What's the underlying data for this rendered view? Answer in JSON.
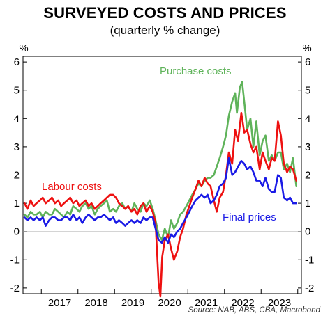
{
  "title": "SURVEYED COSTS AND PRICES",
  "subtitle": "(quarterly % change)",
  "unit_left": "%",
  "unit_right": "%",
  "source": "Source: NAB, ABS, CBA, Macrobond",
  "colors": {
    "labour": "#ee1111",
    "purchase": "#5fb35a",
    "final": "#1a1ae6",
    "axis": "#000000"
  },
  "chart_data": {
    "type": "line",
    "title": "SURVEYED COSTS AND PRICES",
    "subtitle": "(quarterly % change)",
    "ylabel": "%",
    "ylim": [
      -2.2,
      6.2
    ],
    "yticks": [
      -2,
      -1,
      0,
      1,
      2,
      3,
      4,
      5,
      6
    ],
    "xlim": [
      2016.5,
      2024.1
    ],
    "xticks": [
      2017,
      2018,
      2019,
      2020,
      2021,
      2022,
      2023
    ],
    "x_tick_labels": [
      "2017",
      "2018",
      "2019",
      "2020",
      "2021",
      "2022",
      "2023"
    ],
    "grid": false,
    "series": [
      {
        "name": "Labour costs",
        "color": "#ee1111",
        "points": [
          [
            2016.54,
            1.0
          ],
          [
            2016.62,
            0.8
          ],
          [
            2016.71,
            1.1
          ],
          [
            2016.79,
            0.9
          ],
          [
            2016.87,
            1.0
          ],
          [
            2016.96,
            1.1
          ],
          [
            2017.04,
            1.2
          ],
          [
            2017.12,
            1.0
          ],
          [
            2017.21,
            1.1
          ],
          [
            2017.29,
            1.2
          ],
          [
            2017.37,
            1.0
          ],
          [
            2017.46,
            1.1
          ],
          [
            2017.54,
            0.9
          ],
          [
            2017.62,
            1.0
          ],
          [
            2017.71,
            1.1
          ],
          [
            2017.79,
            1.2
          ],
          [
            2017.87,
            1.0
          ],
          [
            2017.96,
            1.1
          ],
          [
            2018.04,
            0.9
          ],
          [
            2018.12,
            1.0
          ],
          [
            2018.21,
            1.1
          ],
          [
            2018.29,
            0.9
          ],
          [
            2018.37,
            1.0
          ],
          [
            2018.46,
            0.8
          ],
          [
            2018.54,
            0.9
          ],
          [
            2018.62,
            1.0
          ],
          [
            2018.71,
            1.1
          ],
          [
            2018.79,
            1.2
          ],
          [
            2018.87,
            1.3
          ],
          [
            2018.96,
            1.3
          ],
          [
            2019.04,
            1.2
          ],
          [
            2019.12,
            1.0
          ],
          [
            2019.21,
            0.9
          ],
          [
            2019.29,
            0.8
          ],
          [
            2019.37,
            0.9
          ],
          [
            2019.46,
            0.7
          ],
          [
            2019.54,
            0.8
          ],
          [
            2019.62,
            0.6
          ],
          [
            2019.71,
            0.9
          ],
          [
            2019.79,
            1.0
          ],
          [
            2019.87,
            0.7
          ],
          [
            2019.96,
            0.9
          ],
          [
            2020.04,
            0.7
          ],
          [
            2020.12,
            0.3
          ],
          [
            2020.2,
            -1.8
          ],
          [
            2020.25,
            -2.3
          ],
          [
            2020.3,
            -0.9
          ],
          [
            2020.37,
            -0.3
          ],
          [
            2020.46,
            -0.1
          ],
          [
            2020.54,
            -0.6
          ],
          [
            2020.62,
            -1.0
          ],
          [
            2020.71,
            -0.7
          ],
          [
            2020.79,
            -0.2
          ],
          [
            2020.87,
            0.1
          ],
          [
            2020.96,
            0.6
          ],
          [
            2021.04,
            0.9
          ],
          [
            2021.12,
            1.2
          ],
          [
            2021.21,
            1.5
          ],
          [
            2021.29,
            1.8
          ],
          [
            2021.37,
            1.6
          ],
          [
            2021.46,
            1.9
          ],
          [
            2021.54,
            1.7
          ],
          [
            2021.62,
            1.6
          ],
          [
            2021.71,
            1.1
          ],
          [
            2021.79,
            0.7
          ],
          [
            2021.87,
            1.2
          ],
          [
            2021.96,
            1.4
          ],
          [
            2022.04,
            2.0
          ],
          [
            2022.12,
            2.8
          ],
          [
            2022.21,
            2.4
          ],
          [
            2022.29,
            3.6
          ],
          [
            2022.37,
            3.2
          ],
          [
            2022.46,
            4.2
          ],
          [
            2022.54,
            3.5
          ],
          [
            2022.62,
            3.6
          ],
          [
            2022.71,
            3.1
          ],
          [
            2022.79,
            2.8
          ],
          [
            2022.87,
            3.0
          ],
          [
            2022.96,
            2.2
          ],
          [
            2023.04,
            2.8
          ],
          [
            2023.12,
            2.5
          ],
          [
            2023.21,
            2.2
          ],
          [
            2023.29,
            2.6
          ],
          [
            2023.37,
            2.5
          ],
          [
            2023.46,
            3.9
          ],
          [
            2023.54,
            3.4
          ],
          [
            2023.62,
            2.4
          ],
          [
            2023.71,
            2.1
          ],
          [
            2023.79,
            2.3
          ],
          [
            2023.87,
            2.2
          ],
          [
            2023.96,
            1.8
          ]
        ]
      },
      {
        "name": "Purchase costs",
        "color": "#5fb35a",
        "points": [
          [
            2016.54,
            0.6
          ],
          [
            2016.62,
            0.5
          ],
          [
            2016.71,
            0.7
          ],
          [
            2016.79,
            0.6
          ],
          [
            2016.87,
            0.6
          ],
          [
            2016.96,
            0.7
          ],
          [
            2017.04,
            0.5
          ],
          [
            2017.12,
            0.7
          ],
          [
            2017.21,
            0.6
          ],
          [
            2017.29,
            0.6
          ],
          [
            2017.37,
            0.8
          ],
          [
            2017.46,
            0.7
          ],
          [
            2017.54,
            0.6
          ],
          [
            2017.62,
            0.5
          ],
          [
            2017.71,
            0.7
          ],
          [
            2017.79,
            0.6
          ],
          [
            2017.87,
            0.9
          ],
          [
            2017.96,
            0.8
          ],
          [
            2018.04,
            0.7
          ],
          [
            2018.12,
            0.9
          ],
          [
            2018.21,
            1.0
          ],
          [
            2018.29,
            0.8
          ],
          [
            2018.37,
            0.9
          ],
          [
            2018.46,
            0.6
          ],
          [
            2018.54,
            0.8
          ],
          [
            2018.62,
            0.9
          ],
          [
            2018.71,
            1.0
          ],
          [
            2018.79,
            1.1
          ],
          [
            2018.87,
            0.7
          ],
          [
            2018.96,
            0.8
          ],
          [
            2019.04,
            0.7
          ],
          [
            2019.12,
            0.9
          ],
          [
            2019.21,
            1.0
          ],
          [
            2019.29,
            0.8
          ],
          [
            2019.37,
            0.9
          ],
          [
            2019.46,
            0.7
          ],
          [
            2019.54,
            1.0
          ],
          [
            2019.62,
            0.8
          ],
          [
            2019.71,
            0.7
          ],
          [
            2019.79,
            1.0
          ],
          [
            2019.87,
            0.9
          ],
          [
            2019.96,
            1.1
          ],
          [
            2020.04,
            0.8
          ],
          [
            2020.12,
            0.4
          ],
          [
            2020.2,
            -0.1
          ],
          [
            2020.29,
            -0.3
          ],
          [
            2020.37,
            0.1
          ],
          [
            2020.46,
            -0.2
          ],
          [
            2020.54,
            0.4
          ],
          [
            2020.62,
            0.1
          ],
          [
            2020.71,
            0.3
          ],
          [
            2020.79,
            0.6
          ],
          [
            2020.87,
            0.7
          ],
          [
            2020.96,
            0.9
          ],
          [
            2021.04,
            1.1
          ],
          [
            2021.12,
            1.3
          ],
          [
            2021.21,
            1.5
          ],
          [
            2021.29,
            1.7
          ],
          [
            2021.37,
            1.6
          ],
          [
            2021.46,
            1.8
          ],
          [
            2021.54,
            1.9
          ],
          [
            2021.62,
            1.9
          ],
          [
            2021.71,
            2.0
          ],
          [
            2021.79,
            2.3
          ],
          [
            2021.87,
            2.6
          ],
          [
            2021.96,
            3.0
          ],
          [
            2022.04,
            3.4
          ],
          [
            2022.12,
            4.1
          ],
          [
            2022.21,
            4.6
          ],
          [
            2022.29,
            4.9
          ],
          [
            2022.34,
            4.2
          ],
          [
            2022.42,
            5.1
          ],
          [
            2022.48,
            5.3
          ],
          [
            2022.54,
            4.6
          ],
          [
            2022.62,
            3.6
          ],
          [
            2022.71,
            4.0
          ],
          [
            2022.79,
            3.0
          ],
          [
            2022.87,
            3.9
          ],
          [
            2022.96,
            2.7
          ],
          [
            2023.04,
            3.2
          ],
          [
            2023.12,
            3.4
          ],
          [
            2023.21,
            2.5
          ],
          [
            2023.29,
            2.7
          ],
          [
            2023.37,
            2.5
          ],
          [
            2023.46,
            2.8
          ],
          [
            2023.54,
            2.8
          ],
          [
            2023.62,
            2.2
          ],
          [
            2023.71,
            2.4
          ],
          [
            2023.79,
            2.1
          ],
          [
            2023.87,
            2.6
          ],
          [
            2023.96,
            1.6
          ]
        ]
      },
      {
        "name": "Final prices",
        "color": "#1a1ae6",
        "points": [
          [
            2016.54,
            0.5
          ],
          [
            2016.62,
            0.4
          ],
          [
            2016.71,
            0.5
          ],
          [
            2016.79,
            0.4
          ],
          [
            2016.87,
            0.5
          ],
          [
            2016.96,
            0.4
          ],
          [
            2017.04,
            0.5
          ],
          [
            2017.12,
            0.2
          ],
          [
            2017.21,
            0.4
          ],
          [
            2017.29,
            0.5
          ],
          [
            2017.37,
            0.5
          ],
          [
            2017.46,
            0.4
          ],
          [
            2017.54,
            0.4
          ],
          [
            2017.62,
            0.5
          ],
          [
            2017.71,
            0.5
          ],
          [
            2017.79,
            0.4
          ],
          [
            2017.87,
            0.6
          ],
          [
            2017.96,
            0.4
          ],
          [
            2018.04,
            0.5
          ],
          [
            2018.12,
            0.3
          ],
          [
            2018.21,
            0.5
          ],
          [
            2018.29,
            0.6
          ],
          [
            2018.37,
            0.5
          ],
          [
            2018.46,
            0.4
          ],
          [
            2018.54,
            0.5
          ],
          [
            2018.62,
            0.5
          ],
          [
            2018.71,
            0.6
          ],
          [
            2018.79,
            0.5
          ],
          [
            2018.87,
            0.4
          ],
          [
            2018.96,
            0.5
          ],
          [
            2019.04,
            0.3
          ],
          [
            2019.12,
            0.4
          ],
          [
            2019.21,
            0.3
          ],
          [
            2019.29,
            0.2
          ],
          [
            2019.37,
            0.3
          ],
          [
            2019.46,
            0.4
          ],
          [
            2019.54,
            0.3
          ],
          [
            2019.62,
            0.4
          ],
          [
            2019.71,
            0.3
          ],
          [
            2019.79,
            0.5
          ],
          [
            2019.87,
            0.4
          ],
          [
            2019.96,
            0.5
          ],
          [
            2020.04,
            0.5
          ],
          [
            2020.12,
            0.1
          ],
          [
            2020.2,
            -0.3
          ],
          [
            2020.29,
            -0.4
          ],
          [
            2020.37,
            -0.2
          ],
          [
            2020.46,
            -0.4
          ],
          [
            2020.54,
            -0.1
          ],
          [
            2020.62,
            -0.2
          ],
          [
            2020.71,
            0.0
          ],
          [
            2020.79,
            0.1
          ],
          [
            2020.87,
            0.3
          ],
          [
            2020.96,
            0.5
          ],
          [
            2021.04,
            0.7
          ],
          [
            2021.12,
            0.9
          ],
          [
            2021.21,
            1.1
          ],
          [
            2021.29,
            1.2
          ],
          [
            2021.37,
            1.3
          ],
          [
            2021.46,
            1.2
          ],
          [
            2021.54,
            1.3
          ],
          [
            2021.62,
            1.0
          ],
          [
            2021.71,
            1.1
          ],
          [
            2021.79,
            1.3
          ],
          [
            2021.87,
            1.6
          ],
          [
            2021.96,
            1.7
          ],
          [
            2022.04,
            1.9
          ],
          [
            2022.12,
            2.6
          ],
          [
            2022.21,
            2.0
          ],
          [
            2022.29,
            2.1
          ],
          [
            2022.37,
            2.3
          ],
          [
            2022.46,
            2.5
          ],
          [
            2022.54,
            2.4
          ],
          [
            2022.62,
            2.2
          ],
          [
            2022.71,
            2.3
          ],
          [
            2022.79,
            2.1
          ],
          [
            2022.87,
            1.8
          ],
          [
            2022.96,
            1.8
          ],
          [
            2023.04,
            1.6
          ],
          [
            2023.12,
            1.9
          ],
          [
            2023.21,
            1.5
          ],
          [
            2023.29,
            1.4
          ],
          [
            2023.37,
            1.4
          ],
          [
            2023.46,
            2.0
          ],
          [
            2023.54,
            1.9
          ],
          [
            2023.62,
            1.2
          ],
          [
            2023.71,
            1.1
          ],
          [
            2023.79,
            1.2
          ],
          [
            2023.87,
            1.0
          ],
          [
            2023.96,
            1.0
          ]
        ]
      }
    ]
  }
}
